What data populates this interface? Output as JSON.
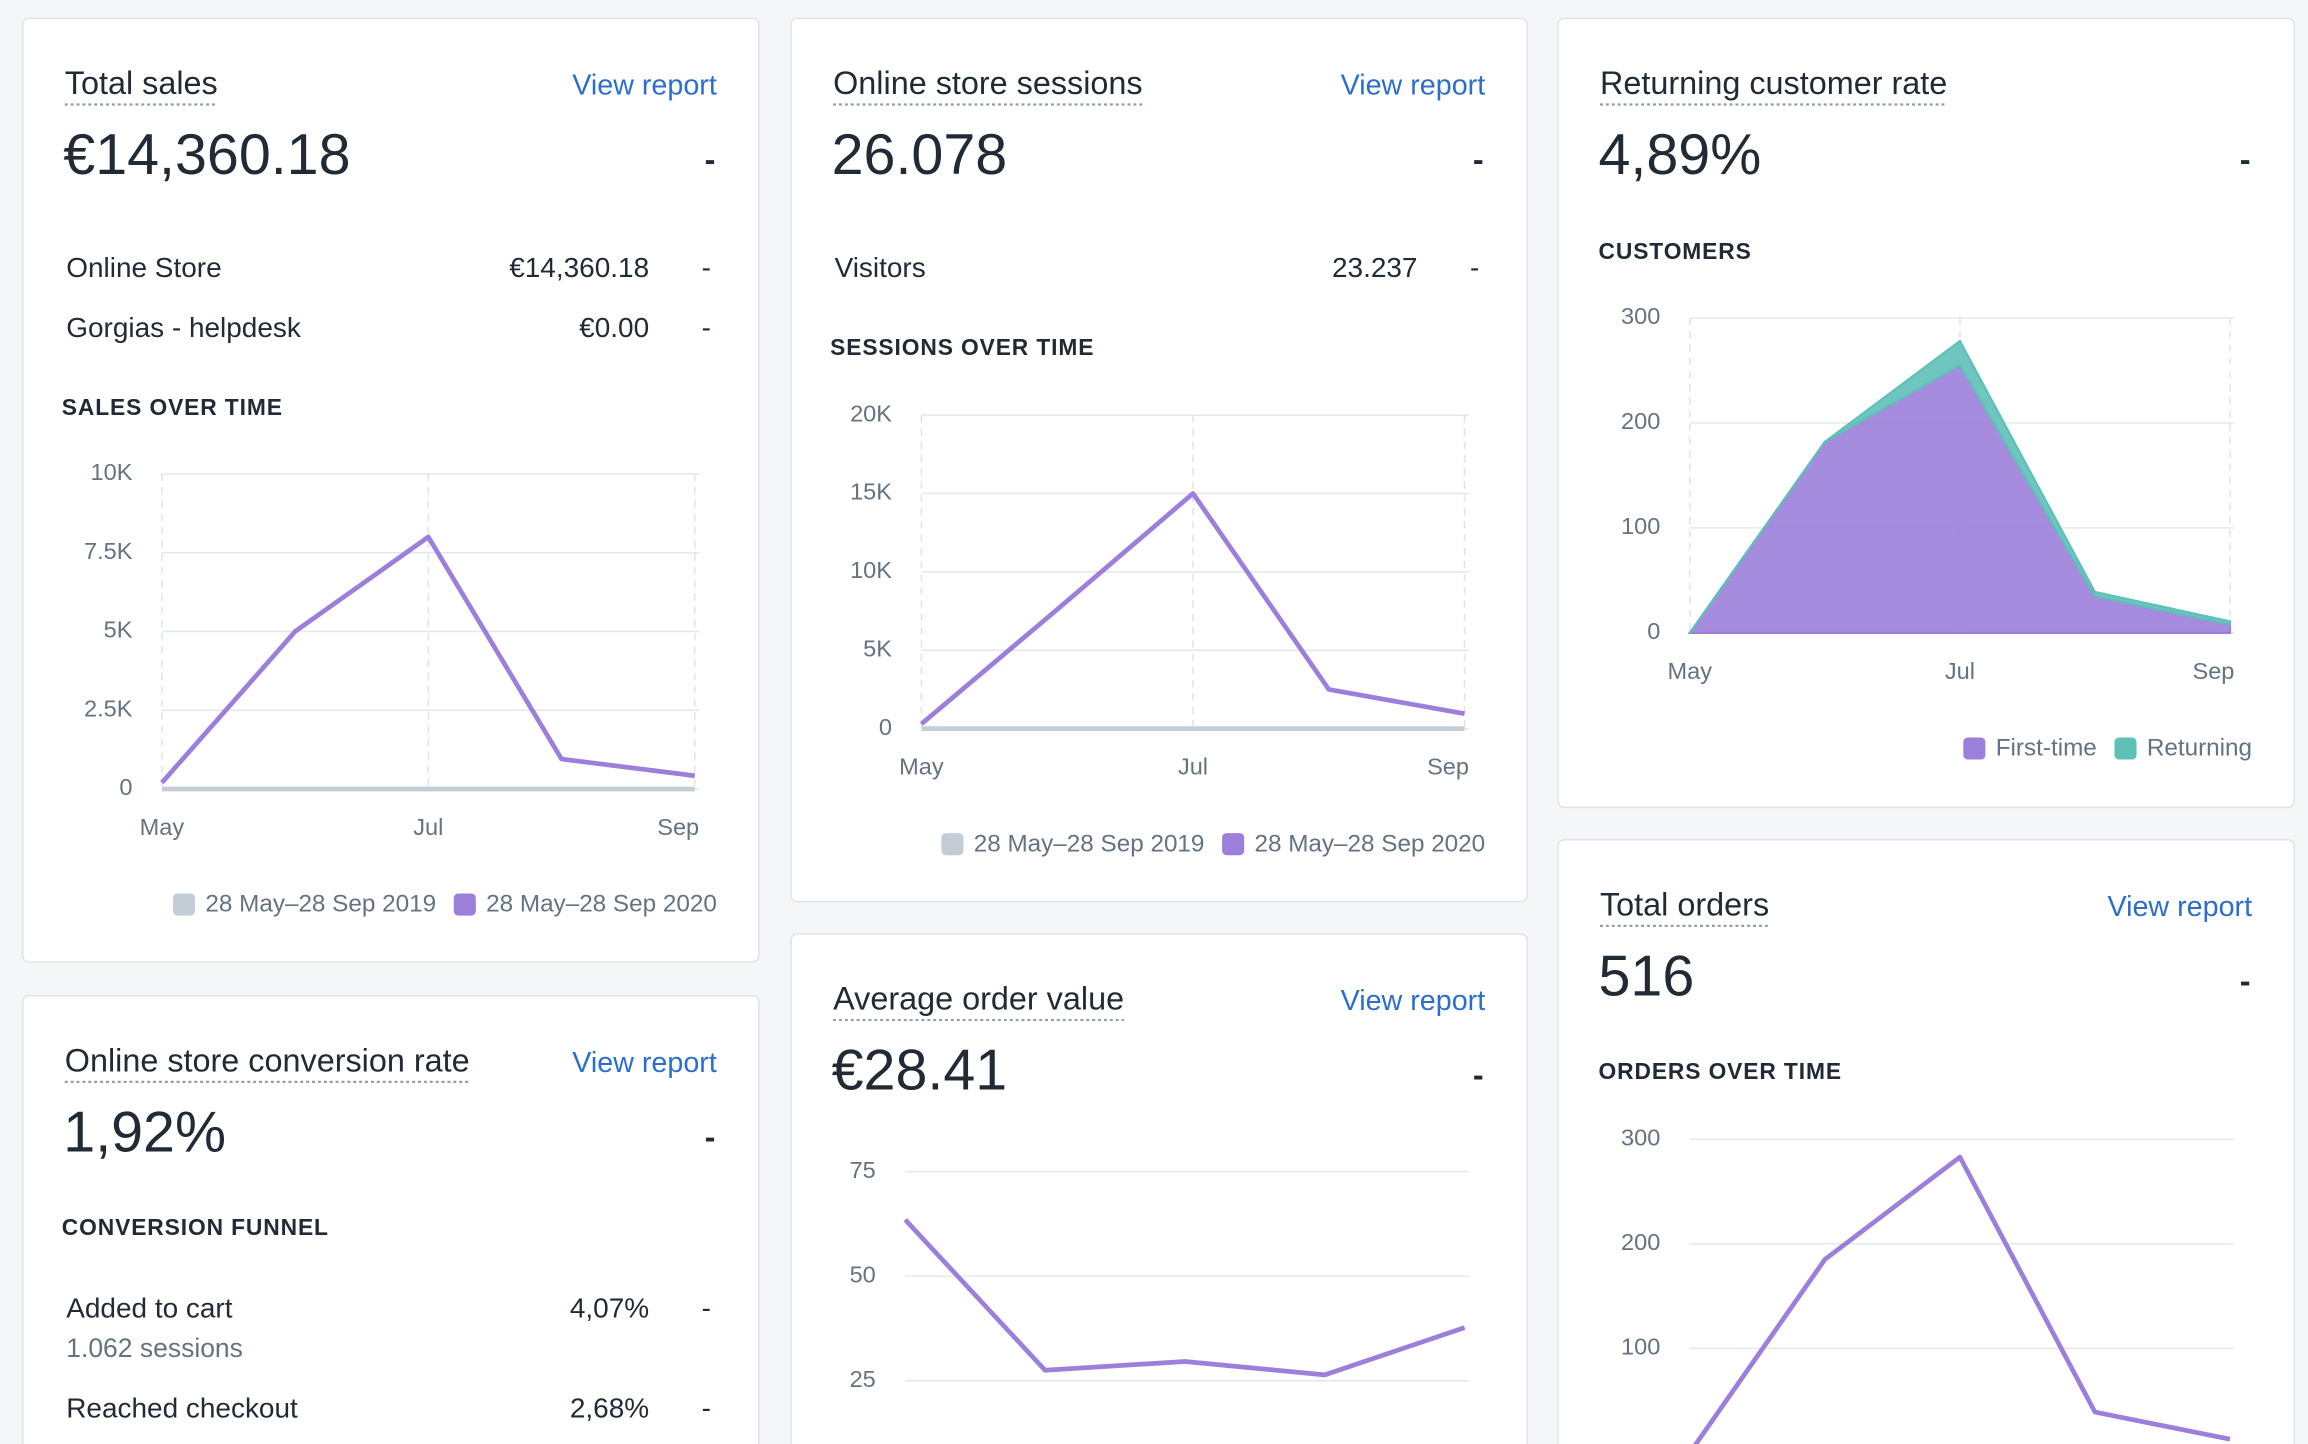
{
  "cards": [
    {
      "title": "Total sales",
      "link": "View report",
      "value": "€14,360.18",
      "change": "-",
      "rows": [
        {
          "label": "Online Store",
          "value": "€14,360.18",
          "change": "-"
        },
        {
          "label": "Gorgias - helpdesk",
          "value": "€0.00",
          "change": "-"
        }
      ]
    },
    {
      "title": "Online store sessions",
      "link": "View report",
      "value": "26.078",
      "change": "-",
      "rows": [
        {
          "label": "Visitors",
          "value": "23.237",
          "change": "-"
        }
      ]
    },
    {
      "title": "Returning customer rate",
      "value": "4,89%",
      "change": "-"
    },
    {
      "title": "Online store conversion rate",
      "link": "View report",
      "value": "1,92%",
      "change": "-",
      "section": "CONVERSION FUNNEL",
      "rows": [
        {
          "label": "Added to cart",
          "value": "4,07%",
          "change": "-",
          "sub": "1.062 sessions"
        },
        {
          "label": "Reached checkout",
          "value": "2,68%",
          "change": "-"
        }
      ]
    },
    {
      "title": "Average order value",
      "link": "View report",
      "value": "€28.41",
      "change": "-"
    },
    {
      "title": "Total orders",
      "link": "View report",
      "value": "516",
      "change": "-"
    }
  ],
  "chart_data": [
    {
      "type": "line",
      "title": "SALES OVER TIME",
      "categories": [
        "May",
        null,
        "Jul",
        null,
        "Sep"
      ],
      "series": [
        {
          "name": "28 May–28 Sep 2019",
          "color": "#c4cdd5",
          "values": [
            0,
            0,
            0,
            0,
            0
          ]
        },
        {
          "name": "28 May–28 Sep 2020",
          "color": "#9c7fdb",
          "values": [
            200,
            5000,
            8000,
            950,
            420
          ]
        }
      ],
      "ylim": [
        0,
        10000
      ],
      "yticks": [
        0,
        {
          "value": 2500,
          "label": "2.5K"
        },
        {
          "value": 5000,
          "label": "5K"
        },
        {
          "value": 7500,
          "label": "7.5K"
        },
        {
          "value": 10000,
          "label": "10K"
        }
      ],
      "grid": true,
      "legend": "bottom-right"
    },
    {
      "type": "line",
      "title": "SESSIONS OVER TIME",
      "categories": [
        "May",
        null,
        "Jul",
        null,
        "Sep"
      ],
      "series": [
        {
          "name": "28 May–28 Sep 2019",
          "color": "#c4cdd5",
          "values": [
            0,
            0,
            0,
            0,
            0
          ]
        },
        {
          "name": "28 May–28 Sep 2020",
          "color": "#9c7fdb",
          "values": [
            300,
            7600,
            15000,
            2500,
            950
          ]
        }
      ],
      "ylim": [
        0,
        20000
      ],
      "yticks": [
        0,
        {
          "value": 5000,
          "label": "5K"
        },
        {
          "value": 10000,
          "label": "10K"
        },
        {
          "value": 15000,
          "label": "15K"
        },
        {
          "value": 20000,
          "label": "20K"
        }
      ],
      "grid": true,
      "legend": "bottom-right"
    },
    {
      "type": "area",
      "title": "CUSTOMERS",
      "categories": [
        "May",
        null,
        "Jul",
        null,
        "Sep"
      ],
      "series": [
        {
          "name": "First-time",
          "color": "#9c7fdb",
          "values": [
            0,
            182,
            255,
            35,
            8
          ]
        },
        {
          "name": "Returning",
          "color": "#5fc0b8",
          "values": [
            0,
            0,
            23,
            4,
            3
          ]
        }
      ],
      "ylim": [
        0,
        300
      ],
      "yticks": [
        0,
        100,
        200,
        300
      ],
      "grid": true,
      "legend": "bottom-right"
    },
    {
      "type": "line",
      "categories": [
        null,
        null,
        null,
        null,
        null
      ],
      "series": [
        {
          "color": "#9c7fdb",
          "values": [
            63.5,
            27.5,
            29.6,
            26.4,
            37.7
          ]
        }
      ],
      "ylim": [
        0,
        75
      ],
      "yticks": [
        25,
        50,
        75
      ],
      "grid": true
    },
    {
      "type": "line",
      "title": "ORDERS OVER TIME",
      "categories": [
        null,
        null,
        null,
        null,
        null
      ],
      "series": [
        {
          "color": "#9c7fdb",
          "values": [
            0,
            185,
            283,
            39,
            13
          ]
        }
      ],
      "ylim": [
        0,
        300
      ],
      "yticks": [
        100,
        200,
        300
      ],
      "grid": true
    }
  ]
}
